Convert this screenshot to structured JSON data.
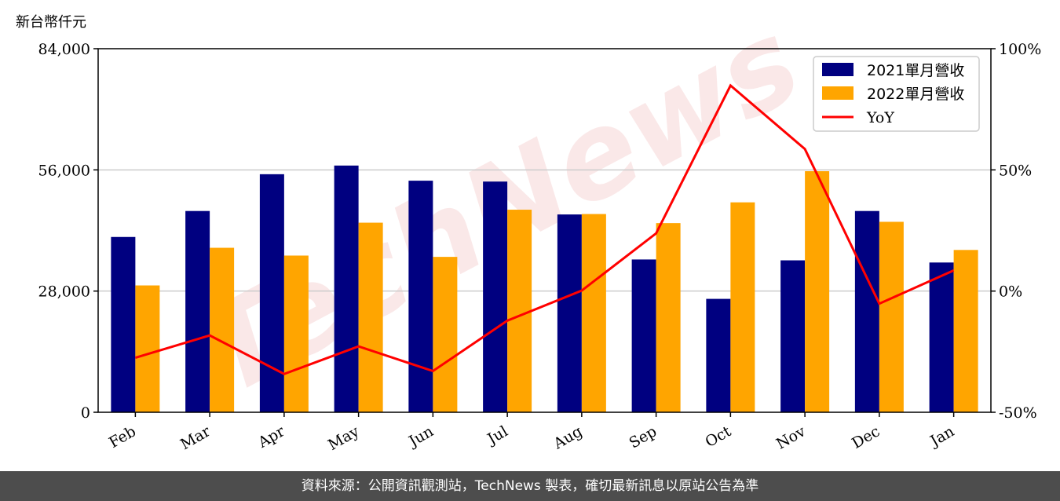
{
  "unit_label": "新台幣仟元",
  "footer": "資料來源：公開資訊觀測站，TechNews 製表，確切最新訊息以原站公告為準",
  "watermark": "TechNews",
  "colors": {
    "bar2021": "#000080",
    "bar2022": "#ffa500",
    "yoy": "#ff0000",
    "grid": "#cccccc"
  },
  "chart_data": {
    "type": "bar",
    "categories": [
      "Feb",
      "Mar",
      "Apr",
      "May",
      "Jun",
      "Jul",
      "Aug",
      "Sep",
      "Oct",
      "Nov",
      "Dec",
      "Jan"
    ],
    "series": [
      {
        "name": "2021單月營收",
        "type": "bar",
        "axis": "left",
        "values": [
          40500,
          46500,
          55000,
          57000,
          53500,
          53300,
          45700,
          35300,
          26200,
          35100,
          46500,
          34600
        ]
      },
      {
        "name": "2022單月營收",
        "type": "bar",
        "axis": "left",
        "values": [
          29300,
          38000,
          36200,
          43800,
          35900,
          46800,
          45800,
          43700,
          48500,
          55700,
          44000,
          37500
        ]
      },
      {
        "name": "YoY",
        "type": "line",
        "axis": "right",
        "values": [
          -27.5,
          -18.3,
          -34.2,
          -22.8,
          -33.0,
          -12.2,
          0.2,
          23.8,
          84.8,
          58.6,
          -5.2,
          8.5
        ]
      }
    ],
    "y_left": {
      "ylim": [
        0,
        84000
      ],
      "ticks": [
        "0",
        "28,000",
        "56,000",
        "84,000"
      ],
      "tick_values": [
        0,
        28000,
        56000,
        84000
      ]
    },
    "y_right": {
      "ylim": [
        -50,
        100
      ],
      "ticks": [
        "-50%",
        "0%",
        "50%",
        "100%"
      ],
      "tick_values": [
        -50,
        0,
        50,
        100
      ]
    },
    "grid": true,
    "legend_position": "top-right"
  }
}
